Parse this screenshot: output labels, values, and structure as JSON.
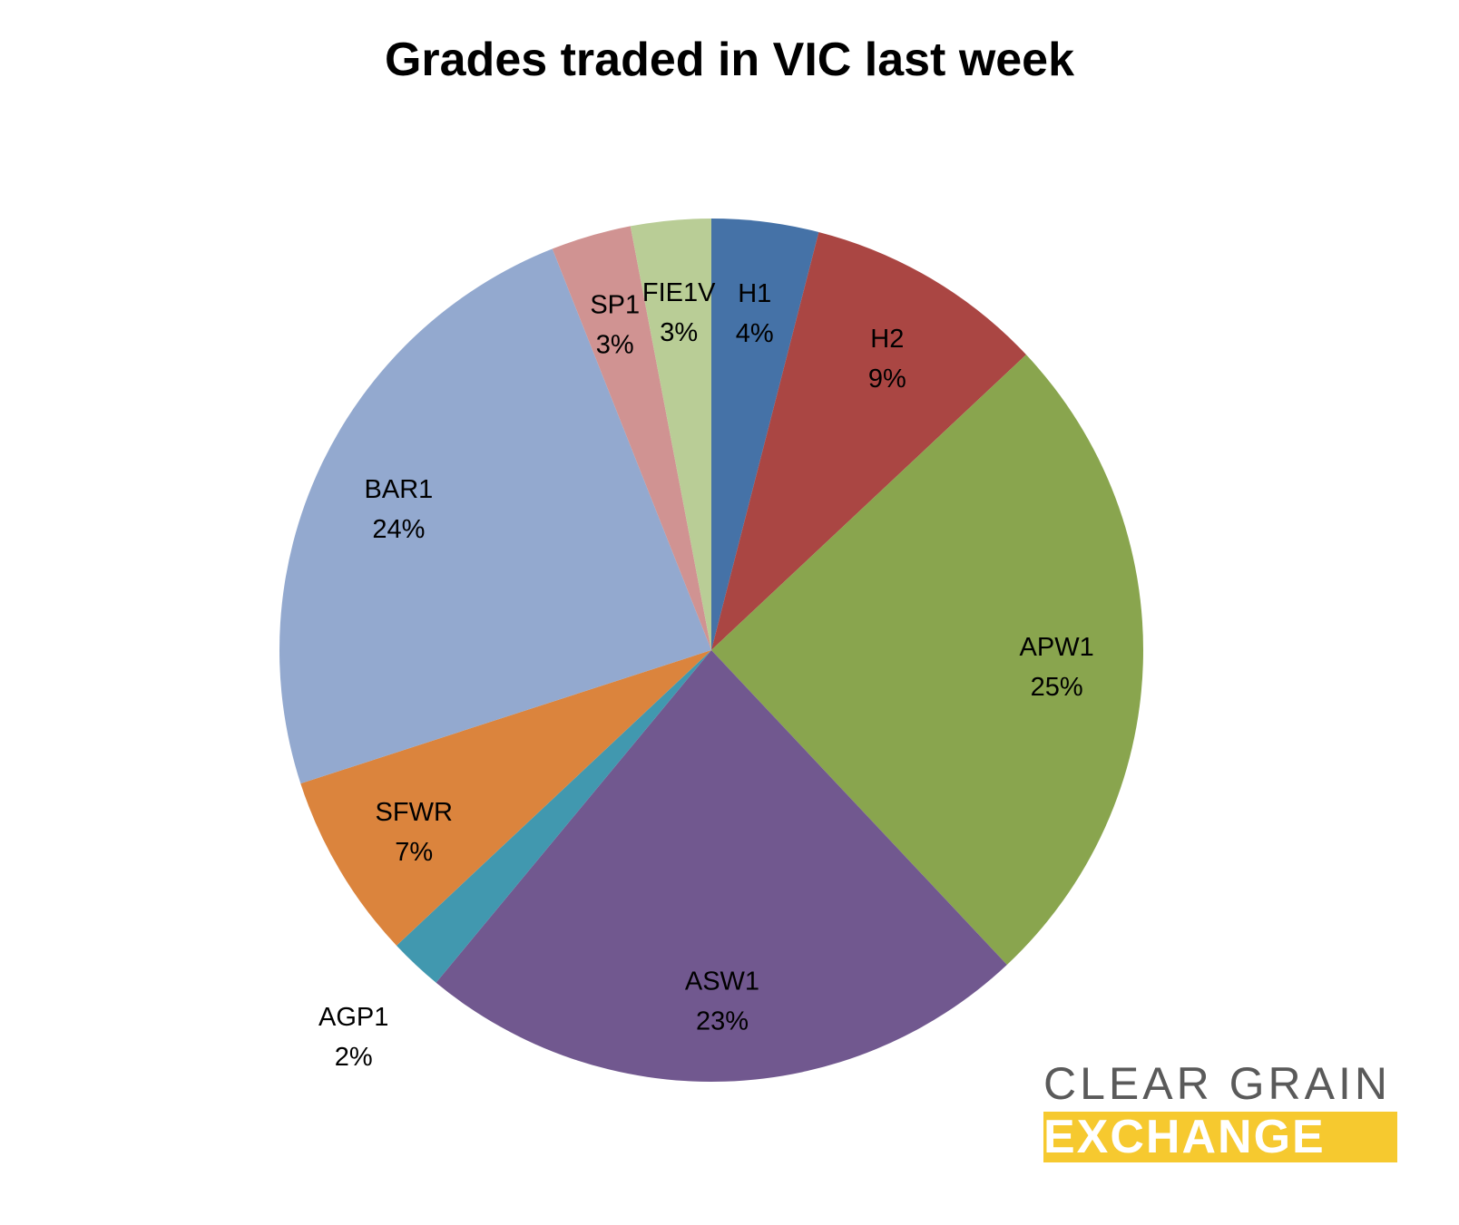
{
  "chart_data": {
    "type": "pie",
    "title": "Grades traded in VIC last week",
    "slices": [
      {
        "label": "H1",
        "value": 4,
        "display": "4%",
        "color": "#4572a7"
      },
      {
        "label": "H2",
        "value": 9,
        "display": "9%",
        "color": "#aa4643"
      },
      {
        "label": "APW1",
        "value": 25,
        "display": "25%",
        "color": "#89a54e"
      },
      {
        "label": "ASW1",
        "value": 23,
        "display": "23%",
        "color": "#71588f"
      },
      {
        "label": "AGP1",
        "value": 2,
        "display": "2%",
        "color": "#4198af"
      },
      {
        "label": "SFWR",
        "value": 7,
        "display": "7%",
        "color": "#db843d"
      },
      {
        "label": "BAR1",
        "value": 24,
        "display": "24%",
        "color": "#93a9cf"
      },
      {
        "label": "SP1",
        "value": 3,
        "display": "3%",
        "color": "#d09392"
      },
      {
        "label": "FIE1V",
        "value": 3,
        "display": "3%",
        "color": "#b9cd96"
      }
    ],
    "start_angle": "12 o'clock",
    "direction": "clockwise",
    "legend": "none",
    "data_labels": "category name and percentage"
  },
  "logo": {
    "line1": "CLEAR GRAIN",
    "line2": "EXCHANGE",
    "text_color": "#5a5a5a",
    "accent_color": "#f6c92f"
  }
}
